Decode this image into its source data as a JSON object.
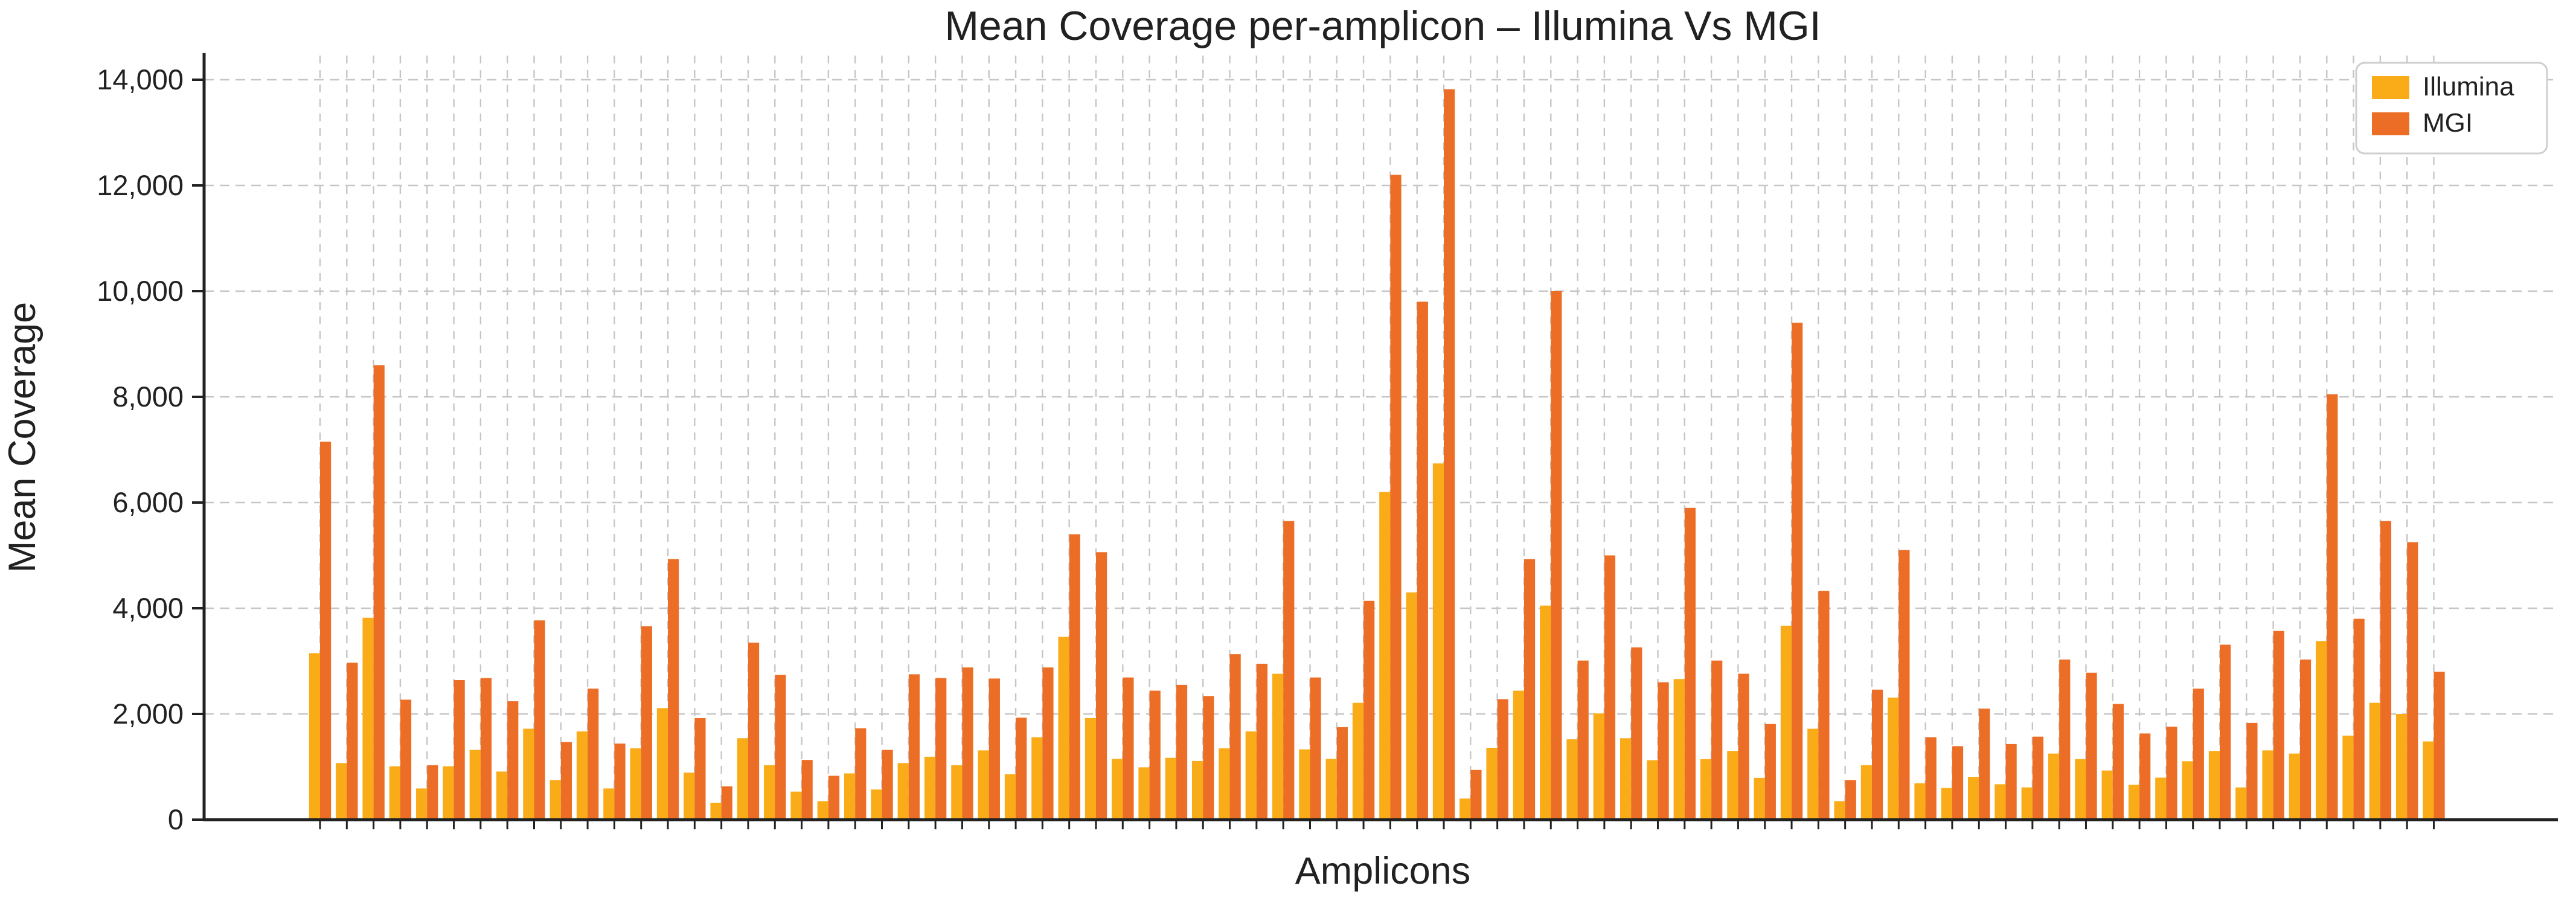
{
  "page": {
    "background": "#ffffff"
  },
  "chart_data": {
    "type": "bar",
    "title": "Mean Coverage per-amplicon – Illumina Vs MGI",
    "xlabel": "Amplicons",
    "ylabel": "Mean Coverage",
    "ylim": [
      0,
      14600
    ],
    "yticks": [
      0,
      2000,
      4000,
      6000,
      8000,
      10000,
      12000,
      14000
    ],
    "ytick_labels": [
      "0",
      "2,000",
      "4,000",
      "6,000",
      "8,000",
      "10,000",
      "12,000",
      "14,000"
    ],
    "grid": true,
    "grid_color": "#c6c6c6",
    "spine_color": "#212121",
    "legend_position": "upper right",
    "n_groups": 80,
    "categories_labels_visible": false,
    "series": [
      {
        "name": "Illumina",
        "color": "#FAAC18",
        "values": [
          3150,
          1070,
          3820,
          1010,
          590,
          1010,
          1320,
          910,
          1720,
          750,
          1670,
          590,
          1350,
          2110,
          890,
          320,
          1540,
          1030,
          530,
          350,
          875,
          570,
          1070,
          1190,
          1030,
          1310,
          860,
          1560,
          3460,
          1920,
          1150,
          990,
          1170,
          1110,
          1350,
          1670,
          2760,
          1330,
          1150,
          2210,
          6200,
          4300,
          6740,
          400,
          1360,
          2440,
          4050,
          1520,
          2010,
          1540,
          1125,
          2660,
          1145,
          1300,
          790,
          3670,
          1720,
          350,
          1030,
          2310,
          690,
          600,
          810,
          670,
          610,
          1250,
          1145,
          930,
          660,
          795,
          1105,
          1300,
          610,
          1310,
          1250,
          3380,
          1590,
          2210,
          2000,
          1480
        ]
      },
      {
        "name": "MGI",
        "color": "#EC6E26",
        "values": [
          7150,
          2970,
          8600,
          2270,
          1030,
          2640,
          2680,
          2240,
          3770,
          1470,
          2480,
          1440,
          3660,
          4930,
          1920,
          630,
          3350,
          2740,
          1130,
          830,
          1730,
          1320,
          2750,
          2680,
          2880,
          2670,
          1930,
          2880,
          5400,
          5060,
          2690,
          2440,
          2550,
          2340,
          3130,
          2950,
          5650,
          2690,
          1750,
          4140,
          12200,
          9800,
          13820,
          940,
          2280,
          4930,
          10000,
          3010,
          5000,
          3260,
          2600,
          5900,
          3010,
          2760,
          1810,
          9400,
          4330,
          750,
          2460,
          5100,
          1560,
          1390,
          2100,
          1430,
          1570,
          3030,
          2780,
          2190,
          1630,
          1760,
          2480,
          3310,
          1830,
          3570,
          3030,
          8050,
          3800,
          5650,
          5250,
          2800
        ]
      }
    ]
  },
  "legend": {
    "items": [
      {
        "label": "Illumina",
        "color": "#FAAC18"
      },
      {
        "label": "MGI",
        "color": "#EC6E26"
      }
    ]
  }
}
